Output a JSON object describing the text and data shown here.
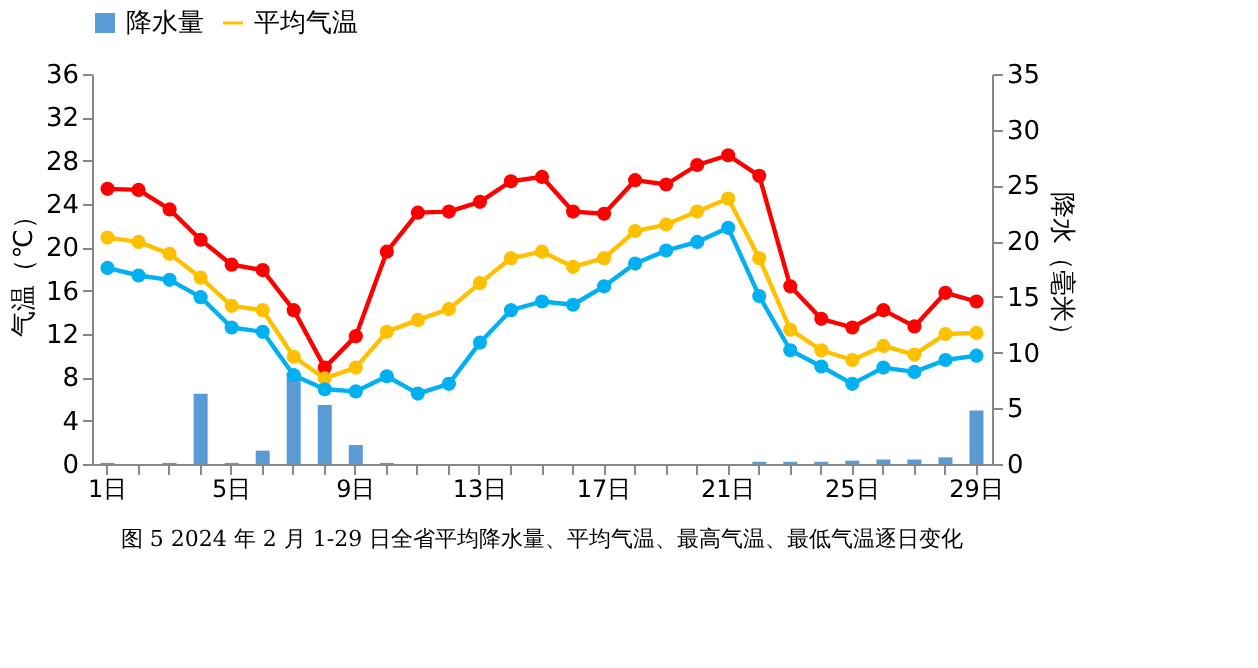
{
  "chart_data": {
    "type": "line",
    "categories": [
      "1日",
      null,
      null,
      null,
      "5日",
      null,
      null,
      null,
      "9日",
      null,
      null,
      null,
      "13日",
      null,
      null,
      null,
      "17日",
      null,
      null,
      null,
      "21日",
      null,
      null,
      null,
      "25日",
      null,
      null,
      null,
      "29日"
    ],
    "ylabel": "气温（℃）",
    "y2label": "降水（毫米）",
    "ylim": [
      0,
      36
    ],
    "yticks": [
      0,
      4,
      8,
      12,
      16,
      20,
      24,
      28,
      32,
      36
    ],
    "y2lim": [
      0,
      35
    ],
    "y2ticks": [
      0,
      5,
      10,
      15,
      20,
      25,
      30,
      35
    ],
    "series": [
      {
        "name": "降水量",
        "type": "bar",
        "axis": "y2",
        "color": "#5b9bd5",
        "values": [
          0.1,
          0,
          0.1,
          6.3,
          0.1,
          1.2,
          8.1,
          5.3,
          1.7,
          0.1,
          0,
          0,
          0,
          0,
          0,
          0,
          0,
          0,
          0,
          0,
          0,
          0.2,
          0.2,
          0.2,
          0.3,
          0.4,
          0.4,
          0.6,
          4.8
        ]
      },
      {
        "color": "#ff0000",
        "values": [
          25.4,
          25.3,
          23.5,
          20.7,
          18.4,
          17.9,
          14.2,
          8.9,
          11.8,
          19.6,
          23.2,
          23.3,
          24.2,
          26.1,
          26.5,
          23.3,
          23.1,
          26.2,
          25.8,
          27.6,
          28.5,
          26.6,
          16.4,
          13.4,
          12.6,
          14.2,
          12.7,
          15.8,
          15.0
        ]
      },
      {
        "name": "平均气温",
        "color": "#ffc000",
        "values": [
          20.9,
          20.5,
          19.4,
          17.2,
          14.6,
          14.2,
          9.9,
          7.9,
          8.9,
          12.2,
          13.3,
          14.3,
          16.7,
          19.0,
          19.6,
          18.2,
          19.0,
          21.5,
          22.1,
          23.3,
          24.5,
          19.0,
          12.4,
          10.5,
          9.6,
          10.9,
          10.1,
          12.0,
          12.1
        ]
      },
      {
        "color": "#00b0f0",
        "values": [
          18.1,
          17.4,
          17.0,
          15.4,
          12.6,
          12.2,
          8.2,
          6.9,
          6.7,
          8.1,
          6.5,
          7.4,
          11.2,
          14.2,
          15.0,
          14.7,
          16.4,
          18.5,
          19.7,
          20.5,
          21.8,
          15.5,
          10.5,
          9.0,
          7.4,
          8.9,
          8.5,
          9.6,
          10.0
        ]
      }
    ],
    "marker": "circle",
    "line_style": "solid",
    "grid": false,
    "legend": "top",
    "annotations": [
      "图 5   2024 年 2 月 1-29 日全省平均降水量、平均气温、最高气温、最低气温逐日变化"
    ]
  }
}
